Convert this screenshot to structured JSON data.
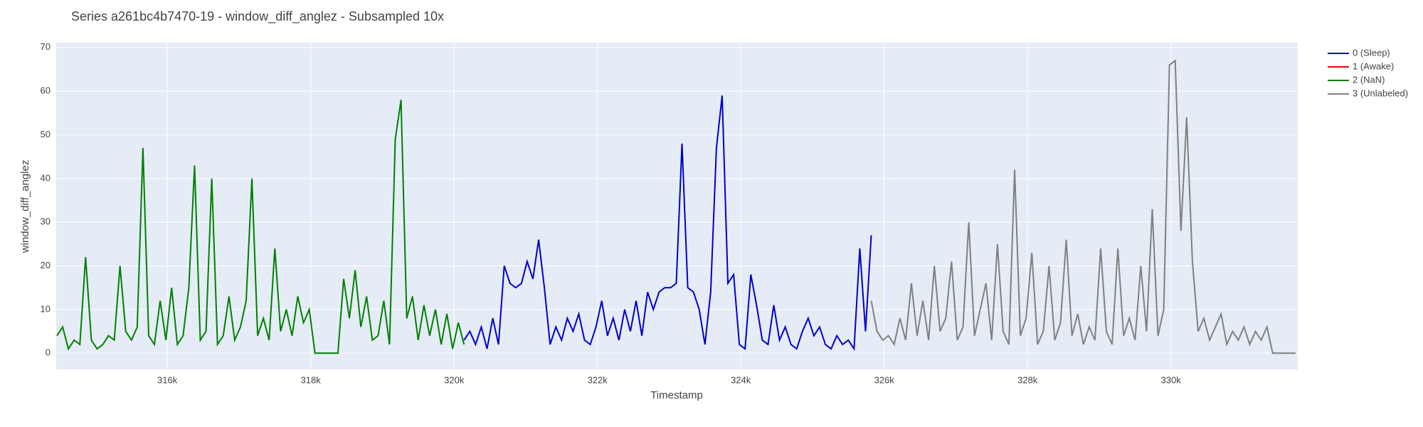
{
  "chart_data": {
    "type": "line",
    "title": "Series a261bc4b7470-19 - window_diff_anglez - Subsampled 10x",
    "xlabel": "Timestamp",
    "ylabel": "window_diff_anglez",
    "xlim": [
      314450,
      331770
    ],
    "ylim": [
      -3.7,
      71.1
    ],
    "xticks": [
      {
        "value": 316000,
        "label": "316k"
      },
      {
        "value": 318000,
        "label": "318k"
      },
      {
        "value": 320000,
        "label": "320k"
      },
      {
        "value": 322000,
        "label": "322k"
      },
      {
        "value": 324000,
        "label": "324k"
      },
      {
        "value": 326000,
        "label": "326k"
      },
      {
        "value": 328000,
        "label": "328k"
      },
      {
        "value": 330000,
        "label": "330k"
      }
    ],
    "yticks": [
      0,
      10,
      20,
      30,
      40,
      50,
      60,
      70
    ],
    "grid": true,
    "legend": "right",
    "series": [
      {
        "name": "0 (Sleep)",
        "color": "#0000cc",
        "x": [
          320140,
          320220,
          320300,
          320380,
          320460,
          320540,
          320620,
          320700,
          320780,
          320860,
          320940,
          321020,
          321100,
          321180,
          321260,
          321340,
          321420,
          321500,
          321580,
          321660,
          321740,
          321820,
          321900,
          321980,
          322060,
          322140,
          322220,
          322300,
          322380,
          322460,
          322540,
          322620,
          322700,
          322780,
          322860,
          322940,
          323020,
          323100,
          323180,
          323260,
          323340,
          323420,
          323500,
          323580,
          323660,
          323740,
          323820,
          323900,
          323980,
          324060,
          324140,
          324220,
          324300,
          324380,
          324460,
          324540,
          324620,
          324700,
          324780,
          324860,
          324940,
          325020,
          325100,
          325180,
          325260,
          325340,
          325420,
          325500,
          325580,
          325660,
          325740,
          325820
        ],
        "values": [
          3,
          5,
          2,
          6,
          1,
          8,
          2,
          20,
          16,
          15,
          16,
          21,
          17,
          26,
          15,
          2,
          6,
          3,
          8,
          5,
          9,
          3,
          2,
          6,
          12,
          4,
          8,
          3,
          10,
          5,
          12,
          4,
          14,
          10,
          14,
          15,
          15,
          16,
          48,
          15,
          14,
          10,
          2,
          14,
          47,
          59,
          16,
          18,
          2,
          1,
          18,
          11,
          3,
          2,
          11,
          3,
          6,
          2,
          1,
          5,
          8,
          4,
          6,
          2,
          1,
          4,
          2,
          3,
          1,
          24,
          5,
          27
        ]
      },
      {
        "name": "1 (Awake)",
        "color": "#ff0000",
        "x": [],
        "values": []
      },
      {
        "name": "2 (NaN)",
        "color": "#008000",
        "x": [
          314460,
          314540,
          314620,
          314700,
          314780,
          314860,
          314940,
          315020,
          315100,
          315180,
          315260,
          315340,
          315420,
          315500,
          315580,
          315660,
          315740,
          315820,
          315900,
          315980,
          316060,
          316140,
          316220,
          316300,
          316380,
          316460,
          316540,
          316620,
          316700,
          316780,
          316860,
          316940,
          317020,
          317100,
          317180,
          317260,
          317340,
          317420,
          317500,
          317580,
          317660,
          317740,
          317820,
          317900,
          317980,
          318060,
          318140,
          318220,
          318300,
          318380,
          318460,
          318540,
          318620,
          318700,
          318780,
          318860,
          318940,
          319020,
          319100,
          319180,
          319260,
          319340,
          319420,
          319500,
          319580,
          319660,
          319740,
          319820,
          319900,
          319980,
          320060,
          320140
        ],
        "values": [
          4,
          6,
          1,
          3,
          2,
          22,
          3,
          1,
          2,
          4,
          3,
          20,
          5,
          3,
          6,
          47,
          4,
          2,
          12,
          3,
          15,
          2,
          4,
          15,
          43,
          3,
          5,
          40,
          2,
          4,
          13,
          3,
          6,
          12,
          40,
          4,
          8,
          3,
          24,
          5,
          10,
          4,
          13,
          7,
          10,
          0,
          0,
          0,
          0,
          0,
          17,
          8,
          19,
          6,
          13,
          3,
          4,
          12,
          2,
          49,
          58,
          8,
          13,
          3,
          11,
          4,
          10,
          2,
          9,
          1,
          7,
          2
        ]
      },
      {
        "name": "3 (Unlabeled)",
        "color": "#808080",
        "x": [
          325820,
          325900,
          325980,
          326060,
          326140,
          326220,
          326300,
          326380,
          326460,
          326540,
          326620,
          326700,
          326780,
          326860,
          326940,
          327020,
          327100,
          327180,
          327260,
          327340,
          327420,
          327500,
          327580,
          327660,
          327740,
          327820,
          327900,
          327980,
          328060,
          328140,
          328220,
          328300,
          328380,
          328460,
          328540,
          328620,
          328700,
          328780,
          328860,
          328940,
          329020,
          329100,
          329180,
          329260,
          329340,
          329420,
          329500,
          329580,
          329660,
          329740,
          329820,
          329900,
          329980,
          330060,
          330140,
          330220,
          330300,
          330380,
          330460,
          330540,
          330620,
          330700,
          330780,
          330860,
          330940,
          331020,
          331100,
          331180,
          331260,
          331340,
          331420,
          331500,
          331580,
          331660,
          331740
        ],
        "values": [
          12,
          5,
          3,
          4,
          2,
          8,
          3,
          16,
          4,
          12,
          3,
          20,
          5,
          8,
          21,
          3,
          6,
          30,
          4,
          10,
          16,
          3,
          25,
          5,
          2,
          42,
          4,
          8,
          23,
          2,
          5,
          20,
          3,
          7,
          26,
          4,
          9,
          2,
          6,
          3,
          24,
          5,
          2,
          24,
          4,
          8,
          3,
          20,
          5,
          33,
          4,
          10,
          66,
          67,
          28,
          54,
          21,
          5,
          8,
          3,
          6,
          9,
          2,
          5,
          3,
          6,
          2,
          5,
          3,
          6,
          0,
          0,
          0,
          0,
          0
        ]
      }
    ]
  }
}
